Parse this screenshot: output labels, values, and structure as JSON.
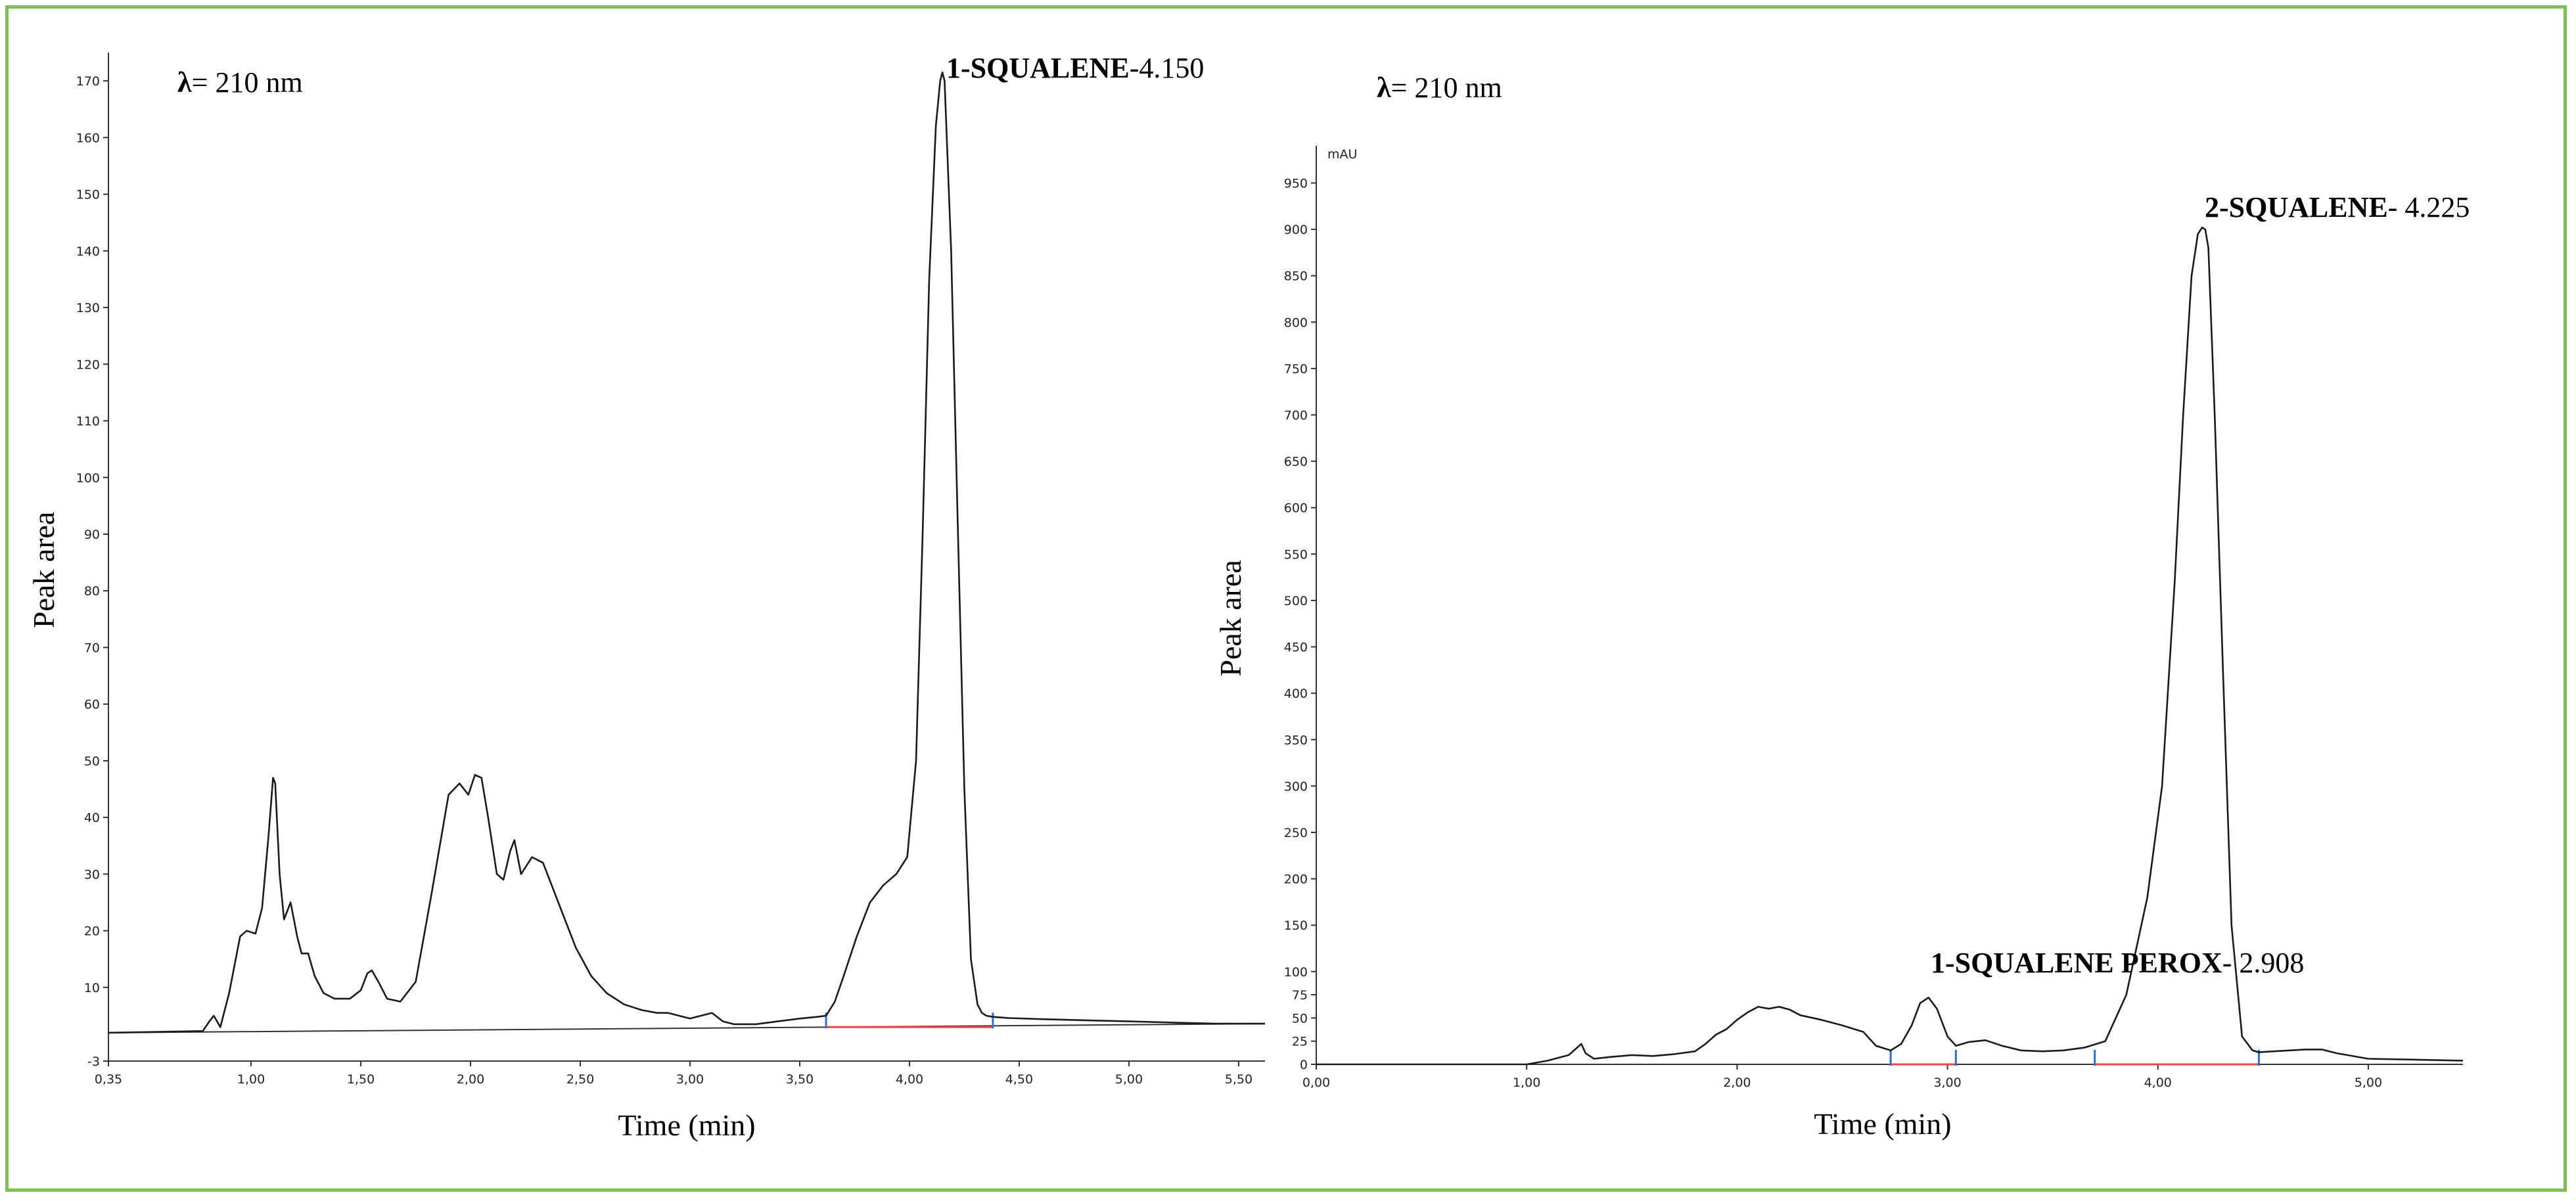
{
  "chart_data": [
    {
      "type": "line",
      "wavelength": {
        "symbol": "λ",
        "text": "= 210 nm"
      },
      "xlabel": "Time (min)",
      "ylabel": "Peak area",
      "xlim": [
        0.35,
        5.62
      ],
      "ylim": [
        -3,
        175
      ],
      "x_ticks": [
        0.35,
        1.0,
        1.5,
        2.0,
        2.5,
        3.0,
        3.5,
        4.0,
        4.5,
        5.0,
        5.5
      ],
      "x_tick_labels": [
        "0,35",
        "1,00",
        "1,50",
        "2,00",
        "2,50",
        "3,00",
        "3,50",
        "4,00",
        "4,50",
        "5,00",
        "5,50"
      ],
      "y_ticks": [
        -3,
        10,
        20,
        30,
        40,
        50,
        60,
        70,
        80,
        90,
        100,
        110,
        120,
        130,
        140,
        150,
        160,
        170
      ],
      "y_tick_labels": [
        "-3",
        "10",
        "20",
        "30",
        "40",
        "50",
        "60",
        "70",
        "80",
        "90",
        "100",
        "110",
        "120",
        "130",
        "140",
        "150",
        "160",
        "170"
      ],
      "baseline": [
        [
          0.35,
          2.0
        ],
        [
          5.62,
          3.6
        ]
      ],
      "integration": {
        "start": 3.62,
        "end": 4.38,
        "value": 3.0
      },
      "annotations": [
        {
          "bold": "1-SQUALENE",
          "text": "-4.150",
          "x": 4.15,
          "y": 172
        }
      ],
      "series": [
        {
          "x": [
            0.35,
            0.78,
            0.81,
            0.83,
            0.86,
            0.9,
            0.95,
            0.98,
            1.02,
            1.05,
            1.08,
            1.1,
            1.11,
            1.13,
            1.15,
            1.18,
            1.21,
            1.23,
            1.26,
            1.29,
            1.33,
            1.38,
            1.45,
            1.5,
            1.53,
            1.55,
            1.58,
            1.62,
            1.68,
            1.75,
            1.82,
            1.9,
            1.95,
            1.99,
            2.02,
            2.05,
            2.08,
            2.12,
            2.15,
            2.18,
            2.2,
            2.23,
            2.28,
            2.33,
            2.4,
            2.48,
            2.55,
            2.62,
            2.7,
            2.78,
            2.85,
            2.9,
            2.95,
            3.0,
            3.05,
            3.1,
            3.15,
            3.2,
            3.3,
            3.4,
            3.5,
            3.58,
            3.62,
            3.66,
            3.7,
            3.76,
            3.82,
            3.88,
            3.94,
            3.99,
            4.03,
            4.06,
            4.09,
            4.12,
            4.14,
            4.15,
            4.16,
            4.19,
            4.22,
            4.25,
            4.28,
            4.31,
            4.33,
            4.35,
            4.38,
            4.45,
            4.6,
            4.8,
            5.0,
            5.2,
            5.4,
            5.62
          ],
          "y": [
            2.0,
            2.3,
            4.0,
            5.0,
            3.0,
            9.0,
            19.0,
            20.0,
            19.5,
            24.0,
            37.0,
            47.0,
            46.0,
            30.0,
            22.0,
            25.0,
            19.0,
            16.0,
            16.0,
            12.0,
            9.0,
            8.0,
            8.0,
            9.5,
            12.5,
            13.0,
            11.0,
            8.0,
            7.5,
            11.0,
            26.0,
            44.0,
            46.0,
            44.0,
            47.5,
            47.0,
            40.0,
            30.0,
            29.0,
            34.0,
            36.0,
            30.0,
            33.0,
            32.0,
            25.0,
            17.0,
            12.0,
            9.0,
            7.0,
            6.0,
            5.5,
            5.5,
            5.0,
            4.5,
            5.0,
            5.5,
            4.0,
            3.5,
            3.5,
            4.0,
            4.5,
            4.8,
            5.0,
            7.5,
            12.0,
            19.0,
            25.0,
            28.0,
            30.0,
            33.0,
            50.0,
            90.0,
            135.0,
            162.0,
            170.0,
            171.5,
            170.0,
            140.0,
            92.0,
            45.0,
            15.0,
            7.0,
            5.5,
            5.0,
            4.8,
            4.6,
            4.4,
            4.2,
            4.0,
            3.8,
            3.6,
            3.6
          ]
        }
      ]
    },
    {
      "type": "line",
      "wavelength": {
        "symbol": "λ",
        "text": "= 210 nm"
      },
      "unit": "mAU",
      "xlabel": "Time (min)",
      "ylabel": "Peak area",
      "xlim": [
        0.0,
        5.45
      ],
      "ylim": [
        0,
        990
      ],
      "x_ticks": [
        0,
        1,
        2,
        3,
        4,
        5
      ],
      "x_tick_labels": [
        "0,00",
        "1,00",
        "2,00",
        "3,00",
        "4,00",
        "5,00"
      ],
      "y_ticks": [
        0,
        25,
        50,
        75,
        100,
        150,
        200,
        250,
        300,
        350,
        400,
        450,
        500,
        550,
        600,
        650,
        700,
        750,
        800,
        850,
        900,
        950
      ],
      "y_tick_labels": [
        "0",
        "25",
        "50",
        "75",
        "100",
        "150",
        "200",
        "250",
        "300",
        "350",
        "400",
        "450",
        "500",
        "550",
        "600",
        "650",
        "700",
        "750",
        "800",
        "850",
        "900",
        "950"
      ],
      "integrations": [
        {
          "start": 2.73,
          "end": 3.04,
          "value": 0
        },
        {
          "start": 3.7,
          "end": 4.48,
          "value": 0
        }
      ],
      "annotations": [
        {
          "bold": "2-SQUALENE",
          "text": "- 4.225",
          "x": 4.225,
          "y": 900
        },
        {
          "bold": "1-SQUALENE PEROX",
          "text": "- 2.908",
          "x": 2.908,
          "y": 75
        }
      ],
      "series": [
        {
          "x": [
            0.0,
            1.0,
            1.1,
            1.2,
            1.26,
            1.28,
            1.32,
            1.4,
            1.5,
            1.6,
            1.7,
            1.8,
            1.85,
            1.9,
            1.95,
            2.0,
            2.05,
            2.1,
            2.15,
            2.2,
            2.25,
            2.3,
            2.4,
            2.5,
            2.6,
            2.66,
            2.73,
            2.78,
            2.83,
            2.87,
            2.91,
            2.95,
            3.0,
            3.04,
            3.1,
            3.18,
            3.26,
            3.35,
            3.45,
            3.55,
            3.65,
            3.75,
            3.85,
            3.95,
            4.02,
            4.08,
            4.12,
            4.16,
            4.19,
            4.21,
            4.225,
            4.24,
            4.27,
            4.31,
            4.35,
            4.4,
            4.45,
            4.48,
            4.55,
            4.7,
            4.78,
            4.85,
            5.0,
            5.45
          ],
          "y": [
            0,
            0,
            4,
            10,
            22,
            12,
            6,
            8,
            10,
            9,
            11,
            14,
            22,
            32,
            38,
            48,
            56,
            62,
            60,
            62,
            59,
            53,
            48,
            42,
            35,
            20,
            15,
            22,
            42,
            66,
            72,
            60,
            30,
            20,
            24,
            26,
            20,
            15,
            14,
            15,
            18,
            25,
            75,
            180,
            300,
            520,
            700,
            850,
            895,
            902,
            900,
            880,
            700,
            420,
            150,
            30,
            15,
            13,
            14,
            16,
            16,
            12,
            6,
            4
          ]
        }
      ]
    }
  ]
}
